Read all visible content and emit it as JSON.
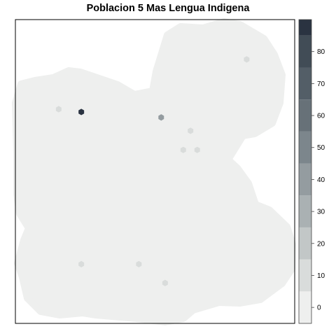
{
  "chart_data": {
    "type": "heatmap",
    "title": "Poblacion 5 Mas Lengua Indigena",
    "xlabel": "",
    "ylabel": "",
    "grid": false,
    "legend_placement": "right",
    "legend": {
      "type": "colorbar",
      "ticks": [
        0,
        10,
        20,
        30,
        40,
        50,
        60,
        70,
        80
      ],
      "range": [
        -5,
        90
      ],
      "bins": [
        {
          "from": -5,
          "to": 5,
          "color": "#eeefee"
        },
        {
          "from": 5,
          "to": 15,
          "color": "#d9dcdb"
        },
        {
          "from": 15,
          "to": 25,
          "color": "#c2c7c7"
        },
        {
          "from": 25,
          "to": 35,
          "color": "#aab1b3"
        },
        {
          "from": 35,
          "to": 45,
          "color": "#949ca0"
        },
        {
          "from": 45,
          "to": 55,
          "color": "#7c868c"
        },
        {
          "from": 55,
          "to": 65,
          "color": "#677178"
        },
        {
          "from": 65,
          "to": 75,
          "color": "#535e67"
        },
        {
          "from": 75,
          "to": 85,
          "color": "#414c56"
        },
        {
          "from": 85,
          "to": 90,
          "color": "#2a3341"
        }
      ]
    },
    "background_value": 0,
    "highlighted_cells": [
      {
        "x": 0.828,
        "y": 0.869,
        "value": 10
      },
      {
        "x": 0.155,
        "y": 0.705,
        "value": 10
      },
      {
        "x": 0.236,
        "y": 0.696,
        "value": 90
      },
      {
        "x": 0.522,
        "y": 0.678,
        "value": 40
      },
      {
        "x": 0.627,
        "y": 0.634,
        "value": 10
      },
      {
        "x": 0.601,
        "y": 0.571,
        "value": 10
      },
      {
        "x": 0.651,
        "y": 0.571,
        "value": 10
      },
      {
        "x": 0.236,
        "y": 0.195,
        "value": 10
      },
      {
        "x": 0.442,
        "y": 0.195,
        "value": 10
      },
      {
        "x": 0.536,
        "y": 0.133,
        "value": 10
      }
    ]
  }
}
